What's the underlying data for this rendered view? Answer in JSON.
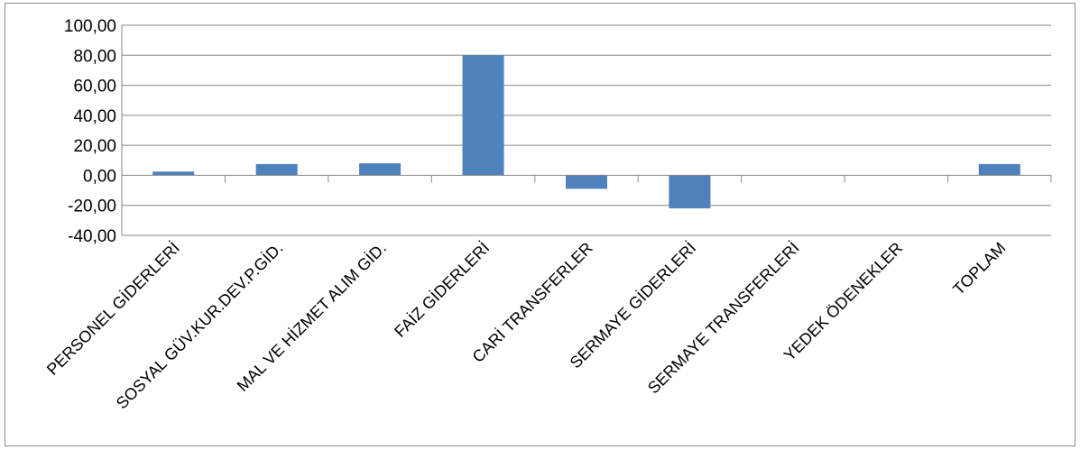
{
  "chart_data": {
    "type": "bar",
    "title": "",
    "xlabel": "",
    "ylabel": "",
    "categories": [
      "PERSONEL GİDERLERİ",
      "SOSYAL GÜV.KUR.DEV.P.GİD.",
      "MAL VE HİZMET ALIM GİD.",
      "FAİZ GİDERLERİ",
      "CARİ TRANSFERLER",
      "SERMAYE GİDERLERİ",
      "SERMAYE TRANSFERLERİ",
      "YEDEK ÖDENEKLER",
      "TOPLAM"
    ],
    "values": [
      2.5,
      7.5,
      8.0,
      80.0,
      -9.0,
      -22.0,
      0,
      0,
      7.5
    ],
    "ylim": [
      -40,
      100
    ],
    "yticks": [
      100,
      80,
      60,
      40,
      20,
      0,
      -20,
      -40
    ],
    "ytick_labels": [
      "100,00",
      "80,00",
      "60,00",
      "40,00",
      "20,00",
      "0,00",
      "-20,00",
      "-40,00"
    ],
    "grid": true,
    "legend": "none",
    "bar_color": "#4f81bd",
    "grid_color": "#868686"
  }
}
